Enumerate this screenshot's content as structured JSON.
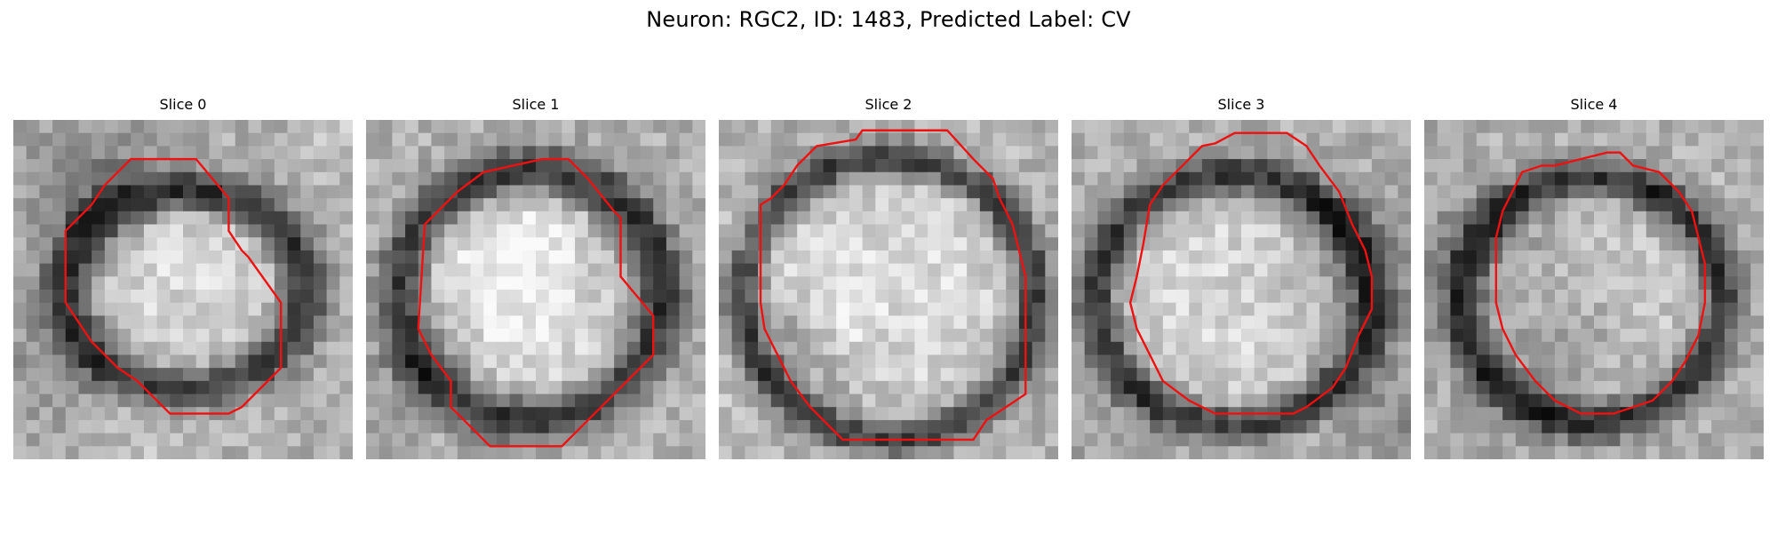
{
  "figure": {
    "title": "Neuron: RGC2, ID: 1483, Predicted Label: CV"
  },
  "panels": [
    {
      "title": "Slice 0"
    },
    {
      "title": "Slice 1"
    },
    {
      "title": "Slice 2"
    },
    {
      "title": "Slice 3"
    },
    {
      "title": "Slice 4"
    }
  ],
  "colors": {
    "contour": "#ee1111"
  }
}
